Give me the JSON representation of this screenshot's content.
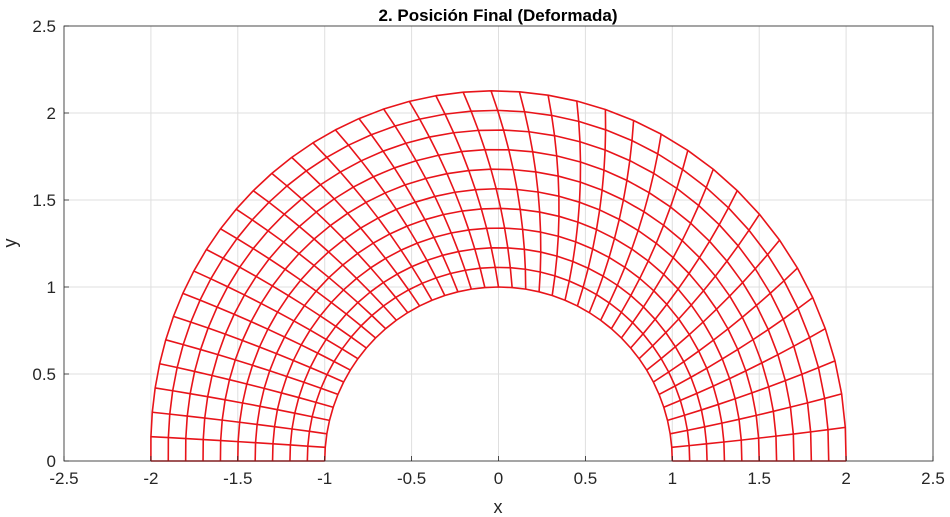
{
  "chart_data": {
    "type": "line",
    "title": "2. Posición Final (Deformada)",
    "xlabel": "x",
    "ylabel": "y",
    "xlim": [
      -2.5,
      2.5
    ],
    "ylim": [
      0,
      2.5
    ],
    "x_ticks": [
      "-2.5",
      "-2",
      "-1.5",
      "-1",
      "-0.5",
      "0",
      "0.5",
      "1",
      "1.5",
      "2",
      "2.5"
    ],
    "y_ticks": [
      "0",
      "0.5",
      "1",
      "1.5",
      "2",
      "2.5"
    ],
    "grid": true,
    "line_color": "#e8141a",
    "mesh": {
      "description_of_geometry": "deformed half-annulus mesh",
      "inner_radius": 1.0,
      "outer_radius": 2.0,
      "radial_divisions": 10,
      "angular_divisions": 40,
      "outer_boundary_peak": [
        -0.2,
        2.13
      ],
      "right_side_bulge_max_x": 2.0
    }
  }
}
